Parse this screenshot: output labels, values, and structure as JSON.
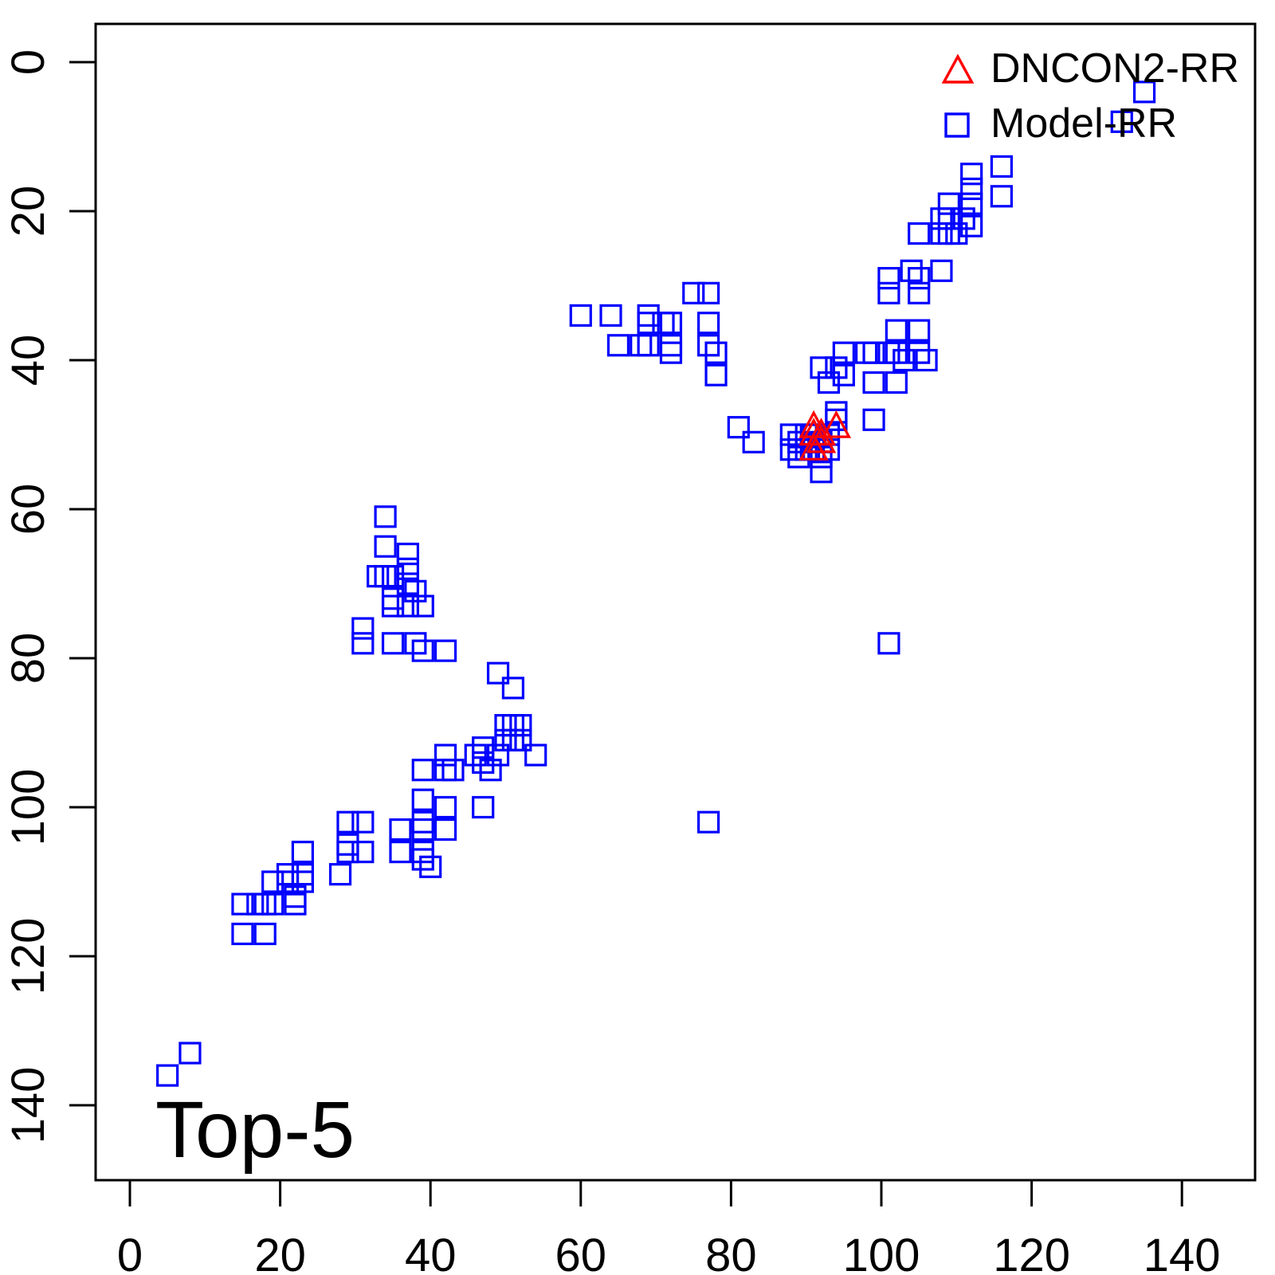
{
  "figure": {
    "background": "#ffffff",
    "frame_color": "#000000",
    "annotation": "Top-5"
  },
  "legend": {
    "items": [
      {
        "label": "DNCON2-RR",
        "marker": "triangle",
        "color": "#ff0000"
      },
      {
        "label": "Model-RR",
        "marker": "square",
        "color": "#0000ff"
      }
    ]
  },
  "chart_data": {
    "type": "scatter",
    "title": "Top-5",
    "xlabel": "",
    "ylabel": "",
    "x_ticks": [
      0,
      20,
      40,
      60,
      80,
      100,
      120,
      140
    ],
    "y_ticks": [
      0,
      20,
      40,
      60,
      80,
      100,
      120,
      140
    ],
    "xlim": [
      -6,
      150
    ],
    "ylim": [
      -6,
      150
    ],
    "y_axis_inverted": true,
    "grid": false,
    "legend_position": "top-right-inside",
    "series": [
      {
        "name": "DNCON2-RR",
        "marker": "triangle",
        "color": "#ff0000",
        "points": [
          [
            91,
            49
          ],
          [
            94,
            49
          ],
          [
            91,
            50
          ],
          [
            92,
            50
          ],
          [
            92,
            51
          ],
          [
            91,
            52
          ]
        ]
      },
      {
        "name": "Model-RR",
        "marker": "square",
        "color": "#0000ff",
        "points": [
          [
            135,
            4
          ],
          [
            132,
            8
          ],
          [
            112,
            15
          ],
          [
            116,
            14
          ],
          [
            112,
            17
          ],
          [
            112,
            19
          ],
          [
            116,
            18
          ],
          [
            109,
            19
          ],
          [
            108,
            21
          ],
          [
            109,
            21
          ],
          [
            111,
            21
          ],
          [
            105,
            23
          ],
          [
            108,
            23
          ],
          [
            109,
            23
          ],
          [
            110,
            23
          ],
          [
            112,
            22
          ],
          [
            101,
            29
          ],
          [
            101,
            31
          ],
          [
            104,
            28
          ],
          [
            105,
            29
          ],
          [
            105,
            31
          ],
          [
            108,
            28
          ],
          [
            102,
            36
          ],
          [
            105,
            36
          ],
          [
            95,
            39
          ],
          [
            98,
            39
          ],
          [
            99,
            39
          ],
          [
            101,
            39
          ],
          [
            102,
            39
          ],
          [
            103,
            40
          ],
          [
            105,
            39
          ],
          [
            106,
            40
          ],
          [
            95,
            42
          ],
          [
            99,
            43
          ],
          [
            102,
            43
          ],
          [
            92,
            41
          ],
          [
            94,
            41
          ],
          [
            93,
            43
          ],
          [
            94,
            47
          ],
          [
            94,
            48
          ],
          [
            99,
            48
          ],
          [
            88,
            50
          ],
          [
            90,
            50
          ],
          [
            91,
            50
          ],
          [
            93,
            50
          ],
          [
            89,
            51
          ],
          [
            92,
            51
          ],
          [
            88,
            52
          ],
          [
            90,
            52
          ],
          [
            91,
            52
          ],
          [
            93,
            52
          ],
          [
            89,
            53
          ],
          [
            92,
            53
          ],
          [
            92,
            55
          ],
          [
            75,
            31
          ],
          [
            77,
            31
          ],
          [
            60,
            34
          ],
          [
            64,
            34
          ],
          [
            69,
            34
          ],
          [
            69,
            35
          ],
          [
            71,
            35
          ],
          [
            72,
            35
          ],
          [
            77,
            35
          ],
          [
            65,
            38
          ],
          [
            68,
            38
          ],
          [
            69,
            38
          ],
          [
            72,
            38
          ],
          [
            72,
            39
          ],
          [
            77,
            38
          ],
          [
            78,
            39
          ],
          [
            78,
            42
          ],
          [
            81,
            49
          ],
          [
            83,
            51
          ],
          [
            34,
            61
          ],
          [
            34,
            65
          ],
          [
            37,
            66
          ],
          [
            33,
            69
          ],
          [
            34,
            69
          ],
          [
            35,
            69
          ],
          [
            37,
            68
          ],
          [
            37,
            70
          ],
          [
            38,
            71
          ],
          [
            35,
            72
          ],
          [
            35,
            73
          ],
          [
            37,
            73
          ],
          [
            39,
            73
          ],
          [
            31,
            76
          ],
          [
            31,
            78
          ],
          [
            35,
            78
          ],
          [
            38,
            78
          ],
          [
            39,
            79
          ],
          [
            42,
            79
          ],
          [
            49,
            82
          ],
          [
            51,
            84
          ],
          [
            50,
            89
          ],
          [
            51,
            89
          ],
          [
            52,
            89
          ],
          [
            50,
            91
          ],
          [
            51,
            91
          ],
          [
            52,
            91
          ],
          [
            54,
            93
          ],
          [
            46,
            93
          ],
          [
            47,
            92
          ],
          [
            47,
            94
          ],
          [
            48,
            95
          ],
          [
            49,
            93
          ],
          [
            42,
            93
          ],
          [
            42,
            95
          ],
          [
            43,
            95
          ],
          [
            39,
            95
          ],
          [
            39,
            99
          ],
          [
            42,
            100
          ],
          [
            47,
            100
          ],
          [
            36,
            103
          ],
          [
            39,
            102
          ],
          [
            39,
            103
          ],
          [
            42,
            103
          ],
          [
            36,
            106
          ],
          [
            39,
            106
          ],
          [
            39,
            107
          ],
          [
            40,
            108
          ],
          [
            29,
            102
          ],
          [
            31,
            102
          ],
          [
            29,
            105
          ],
          [
            29,
            106
          ],
          [
            31,
            106
          ],
          [
            28,
            109
          ],
          [
            23,
            106
          ],
          [
            21,
            109
          ],
          [
            23,
            109
          ],
          [
            21,
            110
          ],
          [
            23,
            110
          ],
          [
            19,
            110
          ],
          [
            22,
            112
          ],
          [
            22,
            113
          ],
          [
            15,
            113
          ],
          [
            17,
            113
          ],
          [
            18,
            113
          ],
          [
            19,
            113
          ],
          [
            15,
            117
          ],
          [
            18,
            117
          ],
          [
            8,
            133
          ],
          [
            5,
            136
          ],
          [
            101,
            78
          ],
          [
            77,
            102
          ]
        ]
      }
    ]
  }
}
